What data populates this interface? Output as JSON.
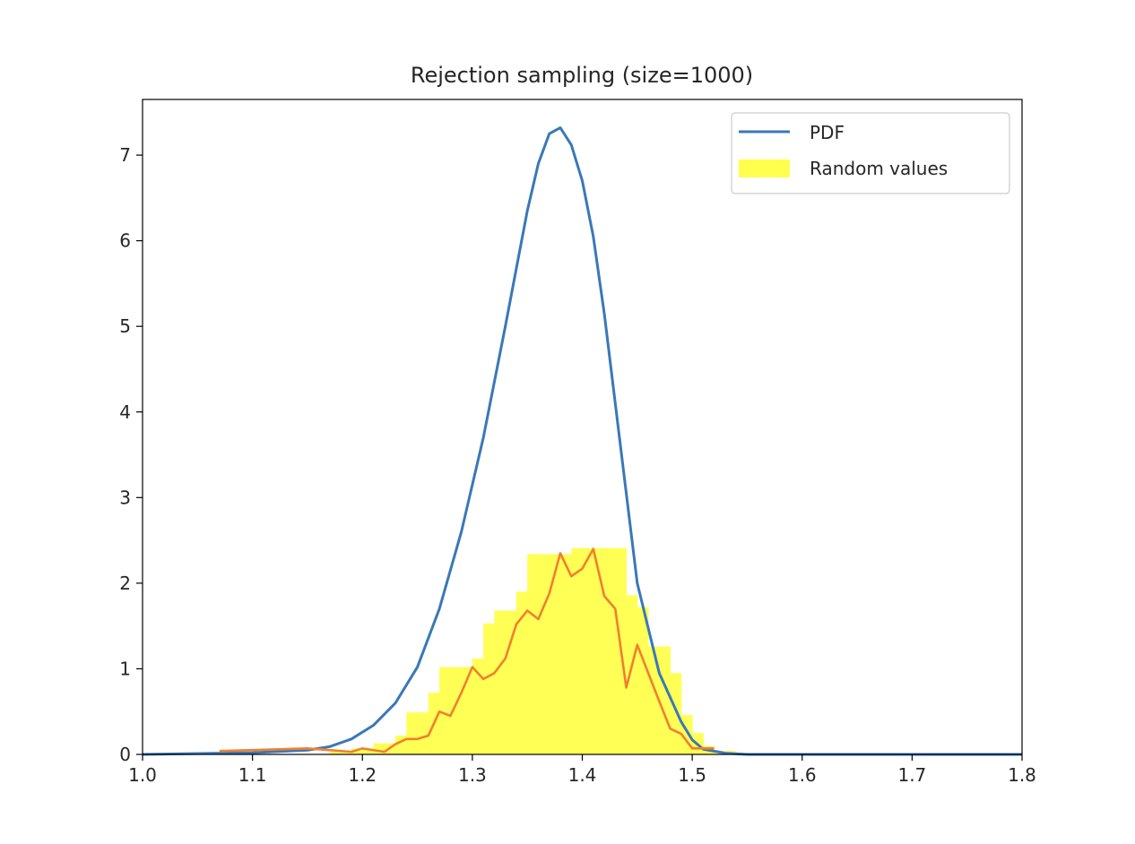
{
  "chart_data": {
    "type": "line",
    "title": "Rejection sampling (size=1000)",
    "xlabel": "",
    "ylabel": "",
    "xlim": [
      1.0,
      1.8
    ],
    "ylim": [
      0,
      7.65
    ],
    "x_ticks": [
      "1.0",
      "1.1",
      "1.2",
      "1.3",
      "1.4",
      "1.5",
      "1.6",
      "1.7",
      "1.8"
    ],
    "y_ticks": [
      "0",
      "1",
      "2",
      "3",
      "4",
      "5",
      "6",
      "7"
    ],
    "grid": false,
    "legend": {
      "position": "top-right",
      "entries": [
        {
          "label": "PDF",
          "kind": "line",
          "color": "#3a78b8"
        },
        {
          "label": "Random values",
          "kind": "patch",
          "color": "#ffff4d"
        }
      ]
    },
    "series": [
      {
        "name": "PDF",
        "kind": "line",
        "color": "#3a78b8",
        "x": [
          1.0,
          1.1,
          1.15,
          1.17,
          1.19,
          1.21,
          1.23,
          1.25,
          1.27,
          1.29,
          1.31,
          1.33,
          1.35,
          1.36,
          1.37,
          1.38,
          1.39,
          1.4,
          1.41,
          1.42,
          1.43,
          1.44,
          1.45,
          1.47,
          1.49,
          1.5,
          1.51,
          1.53,
          1.55,
          1.6,
          1.8
        ],
        "y": [
          0.0,
          0.02,
          0.05,
          0.09,
          0.18,
          0.34,
          0.6,
          1.02,
          1.7,
          2.6,
          3.7,
          5.0,
          6.35,
          6.9,
          7.25,
          7.32,
          7.12,
          6.7,
          6.05,
          5.15,
          4.1,
          3.05,
          2.0,
          0.95,
          0.38,
          0.17,
          0.06,
          0.015,
          0.0,
          0.0,
          0.0
        ]
      },
      {
        "name": "",
        "kind": "line",
        "color": "#f08030",
        "x": [
          1.07,
          1.1,
          1.15,
          1.19,
          1.2,
          1.21,
          1.22,
          1.23,
          1.24,
          1.25,
          1.26,
          1.27,
          1.28,
          1.29,
          1.3,
          1.31,
          1.32,
          1.33,
          1.34,
          1.35,
          1.36,
          1.37,
          1.38,
          1.39,
          1.4,
          1.41,
          1.42,
          1.43,
          1.44,
          1.45,
          1.46,
          1.47,
          1.48,
          1.49,
          1.5,
          1.51,
          1.52
        ],
        "y": [
          0.04,
          0.05,
          0.07,
          0.03,
          0.07,
          0.05,
          0.03,
          0.12,
          0.18,
          0.18,
          0.22,
          0.5,
          0.45,
          0.72,
          1.02,
          0.88,
          0.95,
          1.12,
          1.52,
          1.68,
          1.58,
          1.88,
          2.35,
          2.08,
          2.17,
          2.4,
          1.85,
          1.7,
          0.78,
          1.28,
          0.95,
          0.62,
          0.3,
          0.24,
          0.07,
          0.07,
          0.07
        ]
      },
      {
        "name": "Random values",
        "kind": "bar",
        "color": "#ffff4d",
        "bin_edges": [
          1.17,
          1.19,
          1.21,
          1.23,
          1.24,
          1.25,
          1.26,
          1.27,
          1.28,
          1.29,
          1.3,
          1.31,
          1.32,
          1.33,
          1.34,
          1.35,
          1.36,
          1.37,
          1.38,
          1.39,
          1.4,
          1.41,
          1.42,
          1.43,
          1.44,
          1.45,
          1.46,
          1.47,
          1.48,
          1.49,
          1.5,
          1.51,
          1.52,
          1.54
        ],
        "values": [
          0.03,
          0.07,
          0.13,
          0.22,
          0.49,
          0.49,
          0.72,
          1.02,
          1.02,
          1.02,
          1.12,
          1.53,
          1.68,
          1.68,
          1.9,
          2.34,
          2.34,
          2.34,
          2.34,
          2.41,
          2.41,
          2.41,
          2.41,
          2.41,
          1.86,
          1.72,
          1.26,
          1.26,
          0.95,
          0.46,
          0.25,
          0.1,
          0.04
        ]
      }
    ]
  }
}
